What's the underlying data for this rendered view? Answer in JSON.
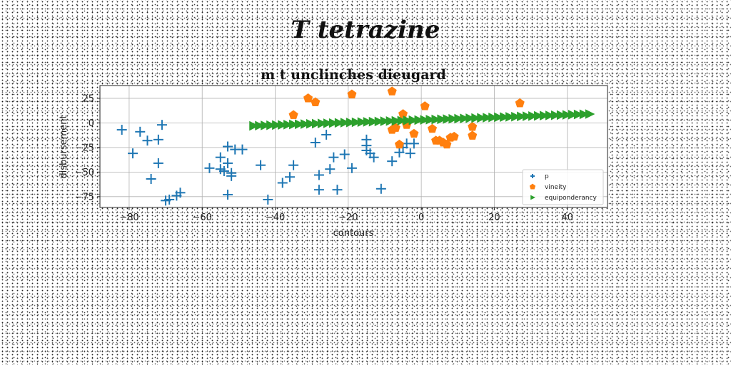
{
  "chart_data": {
    "type": "scatter",
    "suptitle": "T tetrazine",
    "title": "m t unclinches dieugard",
    "xlabel": "contours",
    "ylabel": "disbursement",
    "xlim": [
      -88,
      51
    ],
    "ylim": [
      -86,
      38
    ],
    "xticks": [
      -80,
      -60,
      -40,
      -20,
      0,
      20,
      40
    ],
    "yticks": [
      25,
      0,
      -25,
      -50,
      -75
    ],
    "grid": true,
    "legend_position": "lower-right",
    "series": [
      {
        "name": "p",
        "marker": "plus",
        "color": "#1f77b4",
        "points": [
          [
            -82,
            -7
          ],
          [
            -77,
            -9
          ],
          [
            -75,
            -18
          ],
          [
            -79,
            -31
          ],
          [
            -72,
            -17
          ],
          [
            -71,
            -2
          ],
          [
            -72,
            -41
          ],
          [
            -74,
            -57
          ],
          [
            -70,
            -79
          ],
          [
            -69,
            -78
          ],
          [
            -67,
            -74
          ],
          [
            -66,
            -71
          ],
          [
            -58,
            -46
          ],
          [
            -55,
            -35
          ],
          [
            -55,
            -47
          ],
          [
            -53,
            -24
          ],
          [
            -54,
            -49
          ],
          [
            -53,
            -41
          ],
          [
            -52,
            -54
          ],
          [
            -52,
            -51
          ],
          [
            -51,
            -27
          ],
          [
            -53,
            -73
          ],
          [
            -49,
            -27
          ],
          [
            -44,
            -43
          ],
          [
            -42,
            -78
          ],
          [
            -38,
            -61
          ],
          [
            -36,
            -55
          ],
          [
            -35,
            -43
          ],
          [
            -29,
            -20
          ],
          [
            -28,
            -53
          ],
          [
            -28,
            -68
          ],
          [
            -26,
            -12
          ],
          [
            -25,
            -47
          ],
          [
            -24,
            -35
          ],
          [
            -23,
            -68
          ],
          [
            -21,
            -32
          ],
          [
            -19,
            -46
          ],
          [
            -15,
            -17
          ],
          [
            -15,
            -23
          ],
          [
            -15,
            -28
          ],
          [
            -14,
            -31
          ],
          [
            -13,
            -35
          ],
          [
            -11,
            -67
          ],
          [
            -8,
            -39
          ],
          [
            -6,
            -30
          ],
          [
            -5,
            -25
          ],
          [
            -4,
            -21
          ],
          [
            -3,
            -31
          ],
          [
            -2,
            -21
          ]
        ]
      },
      {
        "name": "vineity",
        "marker": "pentagon",
        "color": "#ff7f0e",
        "points": [
          [
            -35,
            8
          ],
          [
            -31,
            25
          ],
          [
            -29,
            21
          ],
          [
            -19,
            29
          ],
          [
            -8,
            32
          ],
          [
            -8,
            -7
          ],
          [
            -7,
            -5
          ],
          [
            -6,
            -22
          ],
          [
            -5,
            9
          ],
          [
            -4,
            -2
          ],
          [
            -2,
            -11
          ],
          [
            1,
            17
          ],
          [
            3,
            -6
          ],
          [
            4,
            -18
          ],
          [
            5,
            -18
          ],
          [
            6,
            -20
          ],
          [
            7,
            -22
          ],
          [
            8,
            -15
          ],
          [
            9,
            -14
          ],
          [
            14,
            -4
          ],
          [
            14,
            -13
          ],
          [
            27,
            20
          ]
        ]
      },
      {
        "name": "equiponderancy",
        "marker": "triangle-right",
        "color": "#2ca02c",
        "x_start": -46,
        "x_end": 46,
        "y_start": -3,
        "y_end": 9,
        "count": 60
      }
    ]
  }
}
